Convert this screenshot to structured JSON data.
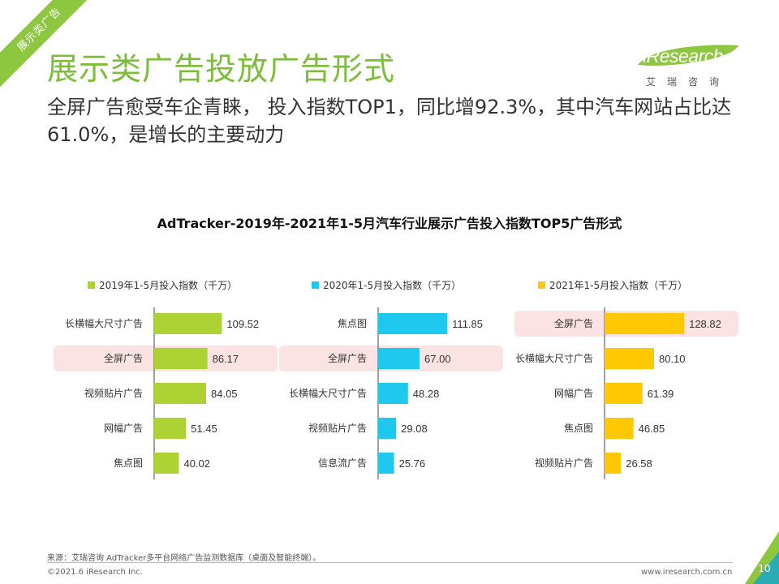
{
  "section_tag": "展示类广告",
  "title": "展示类广告投放广告形式",
  "subtitle": "全屏广告愈受车企青睐， 投入指数TOP1，同比增92.3%，其中汽车网站占比达61.0%，是增长的主要动力",
  "logo": {
    "text": "iResearch",
    "sub": "艾瑞咨询"
  },
  "chart_data": {
    "type": "bar",
    "orientation": "horizontal",
    "title": "AdTracker-2019年-2021年1-5月汽车行业展示广告投入指数TOP5广告形式",
    "xlim": [
      0,
      130
    ],
    "panels": [
      {
        "legend": "2019年1-5月投入指数（千万）",
        "color": "#acd333",
        "categories": [
          "长横幅大尺寸广告",
          "全屏广告",
          "视频贴片广告",
          "网幅广告",
          "焦点图"
        ],
        "values": [
          109.52,
          86.17,
          84.05,
          51.45,
          40.02
        ],
        "value_labels": [
          "109.52",
          "86.17",
          "84.05",
          "51.45",
          "40.02"
        ],
        "highlight": "全屏广告"
      },
      {
        "legend": "2020年1-5月投入指数（千万）",
        "color": "#1ec8ee",
        "categories": [
          "焦点图",
          "全屏广告",
          "长横幅大尺寸广告",
          "视频贴片广告",
          "信息流广告"
        ],
        "values": [
          111.85,
          67.0,
          48.28,
          29.08,
          25.76
        ],
        "value_labels": [
          "111.85",
          "67.00",
          "48.28",
          "29.08",
          "25.76"
        ],
        "highlight": "全屏广告"
      },
      {
        "legend": "2021年1-5月投入指数（千万）",
        "color": "#ffc800",
        "categories": [
          "全屏广告",
          "长横幅大尺寸广告",
          "网幅广告",
          "焦点图",
          "视频贴片广告"
        ],
        "values": [
          128.82,
          80.1,
          61.39,
          46.85,
          26.58
        ],
        "value_labels": [
          "128.82",
          "80.10",
          "61.39",
          "46.85",
          "26.58"
        ],
        "highlight": "全屏广告"
      }
    ],
    "highlight_color": "#fbe3e3"
  },
  "footer": {
    "source": "来源：艾瑞咨询 AdTracker多平台网络广告监测数据库（桌面及智能终端）。",
    "copyright": "©2021.6 iResearch Inc.",
    "url": "www.iresearch.com.cn",
    "page": "10"
  },
  "colors": {
    "accent": "#7cbd3a",
    "ribbon": "#8dc63f",
    "corner": "#8dc63f"
  }
}
